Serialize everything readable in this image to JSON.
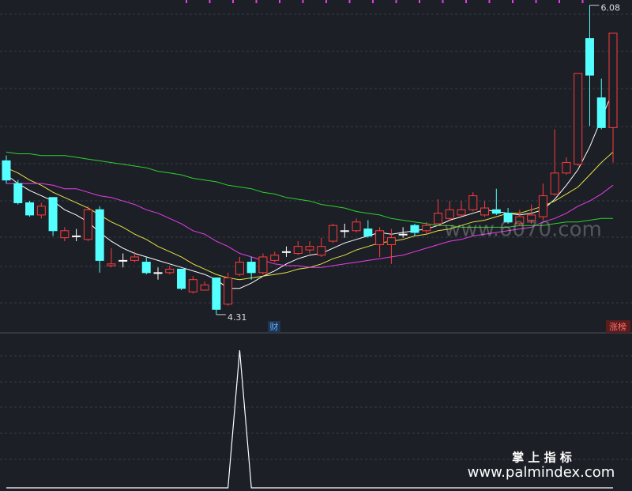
{
  "chart_data": {
    "type": "candlestick",
    "categories": [
      null,
      null,
      null,
      null,
      null,
      null,
      null,
      null,
      null,
      null,
      null,
      null,
      null,
      null,
      null,
      null,
      null,
      null,
      null,
      null,
      null,
      null,
      null,
      null,
      null,
      null,
      null,
      null,
      null,
      null,
      null,
      null,
      null,
      null,
      null,
      null,
      null,
      null,
      null,
      null,
      null,
      null,
      null,
      null,
      null,
      null,
      null,
      null,
      null,
      null,
      null,
      null,
      null
    ],
    "open": [
      5.19,
      5.06,
      4.95,
      4.88,
      4.98,
      4.75,
      4.76,
      4.74,
      4.91,
      4.59,
      4.62,
      4.62,
      4.61,
      4.55,
      4.55,
      4.57,
      4.44,
      4.45,
      4.52,
      4.37,
      4.54,
      4.61,
      4.55,
      4.62,
      4.67,
      4.66,
      4.68,
      4.65,
      4.73,
      4.79,
      4.79,
      4.8,
      4.71,
      4.71,
      4.77,
      4.82,
      4.79,
      4.83,
      4.86,
      4.88,
      4.91,
      4.88,
      4.91,
      4.89,
      4.83,
      4.85,
      4.87,
      5.0,
      5.12,
      5.17,
      5.89,
      5.55,
      5.38
    ],
    "close": [
      5.08,
      4.95,
      4.88,
      4.93,
      4.79,
      4.79,
      4.76,
      4.91,
      4.62,
      4.6,
      4.62,
      4.64,
      4.55,
      4.55,
      4.57,
      4.46,
      4.51,
      4.48,
      4.34,
      4.52,
      4.61,
      4.55,
      4.64,
      4.65,
      4.67,
      4.7,
      4.7,
      4.7,
      4.82,
      4.79,
      4.84,
      4.76,
      4.79,
      4.75,
      4.77,
      4.78,
      4.82,
      4.89,
      4.91,
      4.91,
      4.99,
      4.92,
      4.89,
      4.84,
      4.87,
      4.88,
      4.99,
      5.12,
      5.18,
      5.69,
      5.68,
      5.38,
      5.92
    ],
    "high": [
      5.22,
      5.08,
      4.96,
      4.95,
      4.98,
      4.81,
      4.8,
      4.93,
      4.93,
      4.69,
      4.66,
      4.67,
      4.64,
      4.58,
      4.59,
      4.57,
      4.53,
      4.5,
      4.52,
      4.55,
      4.64,
      4.64,
      4.66,
      4.67,
      4.7,
      4.73,
      4.73,
      4.75,
      4.83,
      4.83,
      4.86,
      4.85,
      4.81,
      4.8,
      4.81,
      4.83,
      4.84,
      4.97,
      4.96,
      4.96,
      5.01,
      4.96,
      5.03,
      4.92,
      4.91,
      4.94,
      5.06,
      5.37,
      5.21,
      5.69,
      6.08,
      5.66,
      5.92
    ],
    "low": [
      5.06,
      4.94,
      4.87,
      4.86,
      4.76,
      4.73,
      4.73,
      4.73,
      4.55,
      4.58,
      4.58,
      4.61,
      4.54,
      4.51,
      4.54,
      4.45,
      4.43,
      4.45,
      4.31,
      4.36,
      4.53,
      4.51,
      4.54,
      4.61,
      4.64,
      4.65,
      4.66,
      4.64,
      4.72,
      4.75,
      4.78,
      4.75,
      4.64,
      4.6,
      4.75,
      4.76,
      4.77,
      4.82,
      4.85,
      4.87,
      4.9,
      4.87,
      4.88,
      4.83,
      4.82,
      4.83,
      4.85,
      4.99,
      5.11,
      5.16,
      5.39,
      5.37,
      5.18
    ],
    "up_color": "#ff3b3b",
    "down_color": "#54ffff",
    "flat_color": "#ffffff",
    "series": [
      {
        "color": "#ffffff",
        "values": [
          5.11,
          5.06,
          5.02,
          4.99,
          4.96,
          4.91,
          4.88,
          4.84,
          4.78,
          4.73,
          4.69,
          4.66,
          4.64,
          4.62,
          4.6,
          4.58,
          4.56,
          4.54,
          4.51,
          4.46,
          4.46,
          4.49,
          4.53,
          4.56,
          4.6,
          4.63,
          4.65,
          4.66,
          4.69,
          4.72,
          4.74,
          4.76,
          4.78,
          4.77,
          4.78,
          4.79,
          4.8,
          4.82,
          4.85,
          4.87,
          4.89,
          4.91,
          4.9,
          4.89,
          4.88,
          4.89,
          4.91,
          4.97,
          5.05,
          5.14,
          5.27,
          5.43,
          5.59
        ]
      },
      {
        "color": "#e8e04a",
        "values": [
          5.15,
          5.12,
          5.08,
          5.05,
          5.01,
          4.98,
          4.95,
          4.92,
          4.88,
          4.84,
          4.81,
          4.77,
          4.74,
          4.7,
          4.67,
          4.64,
          4.6,
          4.57,
          4.54,
          4.52,
          4.51,
          4.52,
          4.53,
          4.54,
          4.55,
          4.57,
          4.58,
          4.6,
          4.63,
          4.65,
          4.68,
          4.7,
          4.72,
          4.73,
          4.74,
          4.76,
          4.77,
          4.79,
          4.8,
          4.82,
          4.84,
          4.85,
          4.87,
          4.89,
          4.89,
          4.91,
          4.93,
          4.96,
          5.0,
          5.04,
          5.11,
          5.18,
          5.24
        ]
      },
      {
        "color": "#e83ee8",
        "values": [
          5.06,
          5.06,
          5.06,
          5.06,
          5.05,
          5.03,
          5.03,
          5.01,
          4.99,
          4.98,
          4.96,
          4.94,
          4.91,
          4.89,
          4.86,
          4.83,
          4.79,
          4.77,
          4.73,
          4.7,
          4.66,
          4.64,
          4.62,
          4.6,
          4.59,
          4.59,
          4.58,
          4.58,
          4.59,
          4.6,
          4.61,
          4.62,
          4.63,
          4.64,
          4.65,
          4.67,
          4.69,
          4.71,
          4.73,
          4.74,
          4.76,
          4.77,
          4.78,
          4.79,
          4.8,
          4.81,
          4.84,
          4.86,
          4.89,
          4.93,
          4.96,
          5.0,
          5.05
        ]
      },
      {
        "color": "#2fd02f",
        "values": [
          5.24,
          5.23,
          5.23,
          5.22,
          5.22,
          5.22,
          5.21,
          5.2,
          5.19,
          5.18,
          5.17,
          5.16,
          5.15,
          5.13,
          5.12,
          5.11,
          5.09,
          5.08,
          5.07,
          5.05,
          5.04,
          5.03,
          5.01,
          5.0,
          4.98,
          4.97,
          4.96,
          4.94,
          4.93,
          4.92,
          4.9,
          4.89,
          4.88,
          4.86,
          4.85,
          4.84,
          4.83,
          4.82,
          4.82,
          4.81,
          4.81,
          4.81,
          4.81,
          4.81,
          4.82,
          4.82,
          4.82,
          4.83,
          4.84,
          4.84,
          4.85,
          4.86,
          4.86
        ]
      }
    ],
    "ylim": [
      4.21,
      6.11
    ],
    "annotations": [
      "6.08",
      "4.31"
    ],
    "badges": [
      "财",
      "涨榜"
    ],
    "indicator": {
      "type": "line",
      "color": "#ffffff",
      "ylim": [
        0,
        1
      ],
      "values": [
        0,
        0,
        0,
        0,
        0,
        0,
        0,
        0,
        0,
        0,
        0,
        0,
        0,
        0,
        0,
        0,
        0,
        0,
        0,
        0,
        1,
        0,
        0,
        0,
        0,
        0,
        0,
        0,
        0,
        0,
        0,
        0,
        0,
        0,
        0,
        0,
        0,
        0,
        0,
        0,
        0,
        0,
        0,
        0,
        0,
        0,
        0,
        0,
        0,
        0,
        0,
        0,
        0
      ]
    }
  },
  "watermark": "www.6070.com",
  "brand": {
    "title": "掌 上 指 标",
    "url": "www.palmindex.com"
  }
}
